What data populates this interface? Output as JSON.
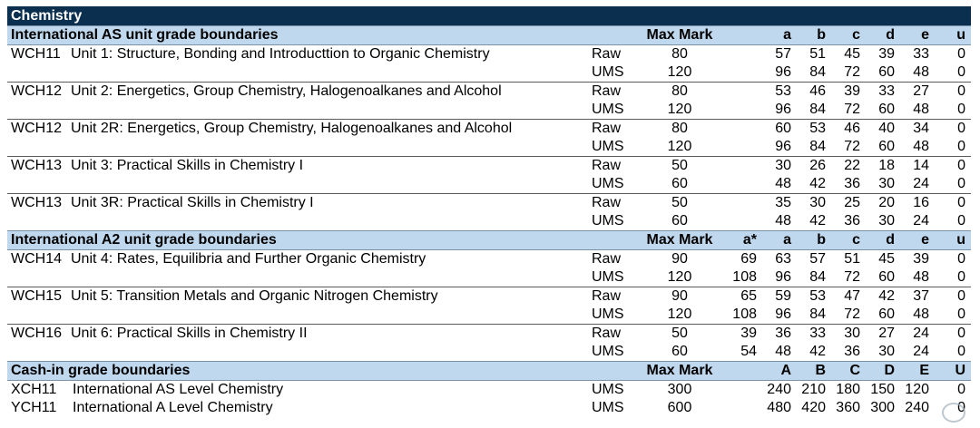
{
  "title": "Chemistry",
  "as_section": {
    "header": "International AS unit grade boundaries",
    "max_mark_label": "Max Mark",
    "grades": [
      "a",
      "b",
      "c",
      "d",
      "e",
      "u"
    ],
    "units": [
      {
        "code": "WCH11",
        "name": "Unit 1: Structure, Bonding and Introducttion to Organic Chemistry",
        "raw": {
          "label": "Raw",
          "max": "80",
          "values": [
            "57",
            "51",
            "45",
            "39",
            "33",
            "0"
          ]
        },
        "ums": {
          "label": "UMS",
          "max": "120",
          "values": [
            "96",
            "84",
            "72",
            "60",
            "48",
            "0"
          ]
        }
      },
      {
        "code": "WCH12",
        "name": "Unit 2: Energetics, Group Chemistry, Halogenoalkanes and Alcohol",
        "raw": {
          "label": "Raw",
          "max": "80",
          "values": [
            "53",
            "46",
            "39",
            "33",
            "27",
            "0"
          ]
        },
        "ums": {
          "label": "UMS",
          "max": "120",
          "values": [
            "96",
            "84",
            "72",
            "60",
            "48",
            "0"
          ]
        }
      },
      {
        "code": "WCH12",
        "name": "Unit 2R: Energetics, Group Chemistry, Halogenoalkanes and Alcohol",
        "raw": {
          "label": "Raw",
          "max": "80",
          "values": [
            "60",
            "53",
            "46",
            "40",
            "34",
            "0"
          ]
        },
        "ums": {
          "label": "UMS",
          "max": "120",
          "values": [
            "96",
            "84",
            "72",
            "60",
            "48",
            "0"
          ]
        }
      },
      {
        "code": "WCH13",
        "name": "Unit 3: Practical Skills in Chemistry I",
        "raw": {
          "label": "Raw",
          "max": "50",
          "values": [
            "30",
            "26",
            "22",
            "18",
            "14",
            "0"
          ]
        },
        "ums": {
          "label": "UMS",
          "max": "60",
          "values": [
            "48",
            "42",
            "36",
            "30",
            "24",
            "0"
          ]
        }
      },
      {
        "code": "WCH13",
        "name": "Unit 3R: Practical Skills in Chemistry I",
        "raw": {
          "label": "Raw",
          "max": "50",
          "values": [
            "35",
            "30",
            "25",
            "20",
            "16",
            "0"
          ]
        },
        "ums": {
          "label": "UMS",
          "max": "60",
          "values": [
            "48",
            "42",
            "36",
            "30",
            "24",
            "0"
          ]
        }
      }
    ]
  },
  "a2_section": {
    "header": "International A2 unit grade boundaries",
    "max_mark_label": "Max Mark",
    "grades": [
      "a*",
      "a",
      "b",
      "c",
      "d",
      "e",
      "u"
    ],
    "units": [
      {
        "code": "WCH14",
        "name": "Unit 4: Rates, Equilibria and Further Organic Chemistry",
        "raw": {
          "label": "Raw",
          "max": "90",
          "values": [
            "69",
            "63",
            "57",
            "51",
            "45",
            "39",
            "0"
          ]
        },
        "ums": {
          "label": "UMS",
          "max": "120",
          "values": [
            "108",
            "96",
            "84",
            "72",
            "60",
            "48",
            "0"
          ]
        }
      },
      {
        "code": "WCH15",
        "name": "Unit 5: Transition Metals and Organic Nitrogen Chemistry",
        "raw": {
          "label": "Raw",
          "max": "90",
          "values": [
            "65",
            "59",
            "53",
            "47",
            "42",
            "37",
            "0"
          ]
        },
        "ums": {
          "label": "UMS",
          "max": "120",
          "values": [
            "108",
            "96",
            "84",
            "72",
            "60",
            "48",
            "0"
          ]
        }
      },
      {
        "code": "WCH16",
        "name": "Unit 6: Practical Skills in Chemistry II",
        "raw": {
          "label": "Raw",
          "max": "50",
          "values": [
            "39",
            "36",
            "33",
            "30",
            "27",
            "24",
            "0"
          ]
        },
        "ums": {
          "label": "UMS",
          "max": "60",
          "values": [
            "54",
            "48",
            "42",
            "36",
            "30",
            "24",
            "0"
          ]
        }
      }
    ]
  },
  "cashin_section": {
    "header": "Cash-in grade boundaries",
    "max_mark_label": "Max Mark",
    "grades": [
      "A",
      "B",
      "C",
      "D",
      "E",
      "U"
    ],
    "rows": [
      {
        "code": "XCH11",
        "name": "International AS Level Chemistry",
        "label": "UMS",
        "max": "300",
        "values": [
          "240",
          "210",
          "180",
          "150",
          "120",
          "0"
        ]
      },
      {
        "code": "YCH11",
        "name": "International A Level Chemistry",
        "label": "UMS",
        "max": "600",
        "values": [
          "480",
          "420",
          "360",
          "300",
          "240",
          "0"
        ]
      }
    ]
  }
}
